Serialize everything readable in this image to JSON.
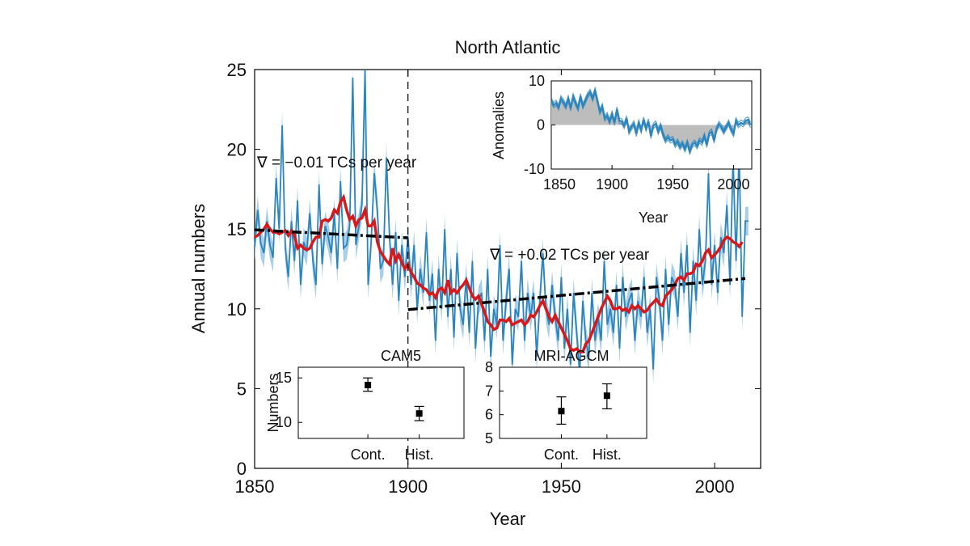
{
  "colors": {
    "band": "#9ec9e6",
    "series": "#2a84bd",
    "smooth": "#d7191c",
    "trend": "#000000",
    "anomaly_fill": "#bdbdbd",
    "axis": "#000000"
  },
  "chart_data": [
    {
      "id": "main",
      "type": "line",
      "title": "North Atlantic",
      "xlabel": "Year",
      "ylabel": "Annual numbers",
      "xlim": [
        1850,
        2015
      ],
      "ylim": [
        0,
        25
      ],
      "xticks": [
        1850,
        1900,
        1950,
        2000
      ],
      "yticks": [
        0,
        5,
        10,
        15,
        20,
        25
      ],
      "grid": false,
      "divider_x": 1900,
      "series": [
        {
          "role": "annual-ensemble-mean",
          "x_start": 1850,
          "values": [
            13.9,
            16.2,
            14.1,
            13.5,
            15.5,
            14.0,
            13.2,
            18.2,
            15.0,
            21.5,
            13.8,
            12.0,
            15.5,
            13.0,
            16.8,
            11.5,
            14.2,
            13.6,
            16.0,
            13.0,
            11.5,
            17.8,
            12.8,
            15.2,
            14.5,
            13.5,
            16.0,
            12.5,
            18.0,
            13.8,
            14.0,
            15.2,
            24.5,
            14.0,
            15.2,
            16.5,
            25.2,
            11.5,
            14.2,
            18.5,
            16.2,
            12.5,
            13.0,
            19.5,
            14.5,
            11.5,
            14.8,
            10.5,
            14.0,
            12.0,
            14.5,
            11.5,
            14.0,
            10.0,
            12.5,
            11.0,
            14.8,
            10.5,
            12.2,
            8.0,
            12.5,
            10.0,
            15.0,
            9.5,
            12.5,
            8.2,
            13.5,
            10.0,
            9.0,
            12.0,
            8.5,
            13.0,
            7.5,
            10.5,
            11.0,
            8.0,
            12.5,
            7.0,
            10.0,
            9.0,
            14.0,
            8.0,
            10.5,
            12.5,
            6.5,
            10.0,
            9.5,
            13.0,
            8.0,
            11.0,
            9.5,
            11.0,
            7.0,
            10.5,
            13.5,
            10.0,
            9.0,
            11.5,
            9.5,
            8.0,
            12.0,
            7.5,
            10.0,
            6.5,
            11.0,
            8.5,
            6.0,
            10.5,
            8.0,
            7.0,
            11.0,
            8.0,
            9.5,
            8.0,
            13.0,
            9.0,
            10.0,
            8.5,
            11.5,
            7.5,
            12.0,
            9.5,
            10.5,
            11.0,
            8.0,
            10.5,
            9.5,
            12.0,
            8.5,
            10.0,
            6.2,
            12.0,
            10.5,
            8.0,
            12.5,
            9.0,
            12.0,
            11.5,
            9.5,
            13.5,
            11.0,
            14.0,
            8.5,
            13.0,
            10.5,
            15.0,
            11.5,
            13.0,
            18.5,
            11.5,
            14.0,
            11.0,
            14.5,
            13.5,
            16.5,
            11.5,
            19.5,
            13.0,
            20.0,
            9.5,
            15.5,
            15.5
          ]
        },
        {
          "role": "smoothed",
          "x_start": 1850,
          "values": [
            14.5,
            14.6,
            14.8,
            15.0,
            15.3,
            15.0,
            14.8,
            14.8,
            14.7,
            14.8,
            14.9,
            14.6,
            14.9,
            14.6,
            13.8,
            14.0,
            13.8,
            13.7,
            13.8,
            14.2,
            14.5,
            14.5,
            15.5,
            15.6,
            15.5,
            15.7,
            16.2,
            16.0,
            16.7,
            17.0,
            16.2,
            15.6,
            15.8,
            15.2,
            15.6,
            15.7,
            16.2,
            15.2,
            15.2,
            15.5,
            14.2,
            13.6,
            13.3,
            13.0,
            12.8,
            13.8,
            13.0,
            13.4,
            12.9,
            12.5,
            12.8,
            12.3,
            12.0,
            11.6,
            11.5,
            11.3,
            11.2,
            10.9,
            11.0,
            10.7,
            11.2,
            11.3,
            11.0,
            11.8,
            11.0,
            11.2,
            11.0,
            11.3,
            11.5,
            11.8,
            11.3,
            10.8,
            10.6,
            10.8,
            10.3,
            9.8,
            9.2,
            9.0,
            8.7,
            8.8,
            9.3,
            9.3,
            9.2,
            9.4,
            9.0,
            9.1,
            9.2,
            9.3,
            9.0,
            9.2,
            9.6,
            9.5,
            9.8,
            10.2,
            10.5,
            10.0,
            9.5,
            9.2,
            9.6,
            9.2,
            8.8,
            8.4,
            8.0,
            7.5,
            7.4,
            7.5,
            7.3,
            7.3,
            7.8,
            8.0,
            8.5,
            9.0,
            9.5,
            10.0,
            10.4,
            10.8,
            10.5,
            10.0,
            10.0,
            10.1,
            9.9,
            10.0,
            9.8,
            10.2,
            10.0,
            10.2,
            10.0,
            9.8,
            9.9,
            10.2,
            10.4,
            10.6,
            10.3,
            10.2,
            10.8,
            11.0,
            11.2,
            11.5,
            11.9,
            12.0,
            11.8,
            12.2,
            12.2,
            12.3,
            12.8,
            12.7,
            13.0,
            13.5,
            13.7,
            13.2,
            13.4,
            13.6,
            13.9,
            14.3,
            14.5,
            14.4,
            14.2,
            14.1,
            13.9,
            14.2
          ]
        }
      ],
      "trend_lines": [
        {
          "x": [
            1850,
            1900
          ],
          "y": [
            14.95,
            14.45
          ],
          "label": "∇ = −0.01 TCs per year"
        },
        {
          "x": [
            1900,
            2010
          ],
          "y": [
            9.95,
            11.9
          ],
          "label": "∇ = +0.02 TCs per year"
        }
      ]
    },
    {
      "id": "inset-anomalies",
      "type": "area",
      "xlabel": "Year",
      "ylabel": "Anomalies",
      "xlim": [
        1850,
        2015
      ],
      "ylim": [
        -10,
        10
      ],
      "xticks": [
        1850,
        1900,
        1950,
        2000
      ],
      "yticks": [
        -10,
        0,
        10
      ],
      "x_start": 1850,
      "x_step": 2,
      "values": [
        5.5,
        4.5,
        5.0,
        4.0,
        6.0,
        5.2,
        4.2,
        6.0,
        3.8,
        6.5,
        5.0,
        3.8,
        6.5,
        4.3,
        5.5,
        6.8,
        7.5,
        6.0,
        7.8,
        5.5,
        3.0,
        4.2,
        1.5,
        2.2,
        0.8,
        2.5,
        0.5,
        3.5,
        1.0,
        0.8,
        -0.2,
        1.5,
        -1.5,
        -0.5,
        0.3,
        -2.0,
        0.5,
        -1.2,
        1.2,
        -0.8,
        0.8,
        -2.5,
        -0.2,
        0.3,
        -1.5,
        -0.2,
        -2.2,
        -3.5,
        -2.8,
        -3.5,
        -3.2,
        -4.5,
        -3.8,
        -5.0,
        -4.2,
        -5.5,
        -4.0,
        -6.0,
        -4.5,
        -4.0,
        -4.8,
        -3.5,
        -4.0,
        -2.5,
        -4.5,
        -2.0,
        -1.5,
        -3.5,
        -1.0,
        0.2,
        -0.5,
        -1.5,
        -0.5,
        0.5,
        -1.0,
        -2.0,
        1.0,
        0.0,
        0.5,
        0.2,
        1.0,
        1.2,
        0.0
      ]
    },
    {
      "id": "inset-cam5",
      "type": "scatter",
      "title": "CAM5",
      "ylabel": "Numbers",
      "categories": [
        "Cont.",
        "Hist."
      ],
      "values": [
        14.2,
        11.0
      ],
      "err_low": [
        13.5,
        10.2
      ],
      "err_high": [
        15.0,
        11.8
      ],
      "ylim": [
        8.2,
        16.2
      ],
      "yticks": [
        10,
        15
      ]
    },
    {
      "id": "inset-mri",
      "type": "scatter",
      "title": "MRI-AGCM",
      "categories": [
        "Cont.",
        "Hist."
      ],
      "values": [
        6.15,
        6.8
      ],
      "err_low": [
        5.6,
        6.25
      ],
      "err_high": [
        6.75,
        7.3
      ],
      "ylim": [
        5,
        8
      ],
      "yticks": [
        5,
        6,
        7,
        8
      ]
    }
  ]
}
